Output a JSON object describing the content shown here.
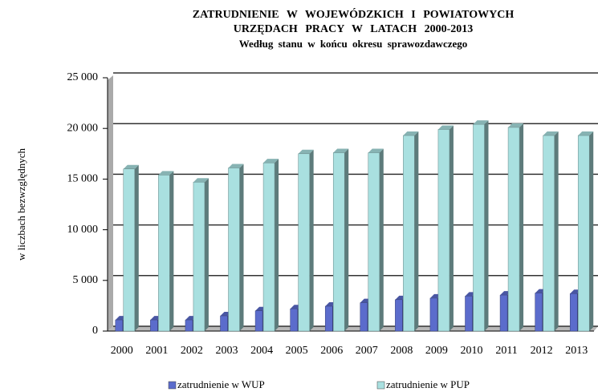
{
  "chart_data": {
    "type": "bar",
    "title": [
      "ZATRUDNIENIE W WOJEWÓDZKICH I POWIATOWYCH",
      "URZĘDACH PRACY W LATACH 2000-2013"
    ],
    "subtitle": "Według stanu w końcu okresu sprawozdawczego",
    "y_label": "w liczbach bezwzględnych",
    "categories": [
      "2000",
      "2001",
      "2002",
      "2003",
      "2004",
      "2005",
      "2006",
      "2007",
      "2008",
      "2009",
      "2010",
      "2011",
      "2012",
      "2013"
    ],
    "series": [
      {
        "name": "zatrudnienie w WUP",
        "color": "#5b6ccc",
        "values": [
          1100,
          1100,
          1100,
          1500,
          2000,
          2200,
          2450,
          2800,
          3100,
          3250,
          3450,
          3550,
          3750,
          3700
        ]
      },
      {
        "name": "zatrudnienie w PUP",
        "color": "#a9e0e0",
        "values": [
          16000,
          15400,
          14700,
          16100,
          16600,
          17500,
          17600,
          17600,
          19300,
          19900,
          20400,
          20100,
          19300,
          19300
        ]
      }
    ],
    "ylim": [
      0,
      25000
    ],
    "yticks": [
      0,
      {
        "value": 5000,
        "label": "5 000"
      },
      {
        "value": 10000,
        "label": "10 000"
      },
      {
        "value": 15000,
        "label": "15 000"
      },
      {
        "value": 20000,
        "label": "20 000"
      },
      {
        "value": 25000,
        "label": "25 000"
      }
    ],
    "grid": true
  }
}
